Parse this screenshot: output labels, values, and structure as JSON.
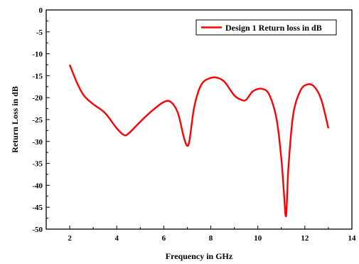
{
  "chart_data": {
    "type": "line",
    "title": "",
    "xlabel": "Frequency in GHz",
    "ylabel": "Return Loss in dB",
    "xlim": [
      1,
      14
    ],
    "ylim": [
      -50,
      0
    ],
    "xticks": [
      2,
      4,
      6,
      8,
      10,
      12,
      14
    ],
    "yticks": [
      0,
      -5,
      -10,
      -15,
      -20,
      -25,
      -30,
      -35,
      -40,
      -45,
      -50
    ],
    "grid": false,
    "legend_position": "top-right",
    "series": [
      {
        "name": "Design 1 Return loss in dB",
        "color": "#ff0000",
        "x": [
          2.0,
          2.3,
          2.6,
          3.0,
          3.5,
          4.0,
          4.3,
          4.5,
          5.0,
          5.5,
          6.0,
          6.3,
          6.6,
          6.85,
          7.0,
          7.1,
          7.3,
          7.6,
          8.0,
          8.3,
          8.6,
          9.0,
          9.3,
          9.5,
          9.8,
          10.2,
          10.5,
          10.8,
          11.0,
          11.1,
          11.2,
          11.3,
          11.5,
          11.8,
          12.1,
          12.4,
          12.7,
          13.0
        ],
        "y": [
          -12.5,
          -16.5,
          -19.5,
          -21.5,
          -23.5,
          -27.0,
          -28.5,
          -28.2,
          -25.5,
          -23.0,
          -21.0,
          -21.0,
          -23.5,
          -29.0,
          -31.0,
          -29.5,
          -22.0,
          -17.0,
          -15.5,
          -15.5,
          -16.5,
          -19.5,
          -20.5,
          -20.5,
          -18.5,
          -18.0,
          -19.5,
          -25.0,
          -34.0,
          -41.0,
          -47.0,
          -36.0,
          -24.0,
          -18.5,
          -17.0,
          -17.5,
          -20.5,
          -27.0
        ]
      }
    ]
  }
}
